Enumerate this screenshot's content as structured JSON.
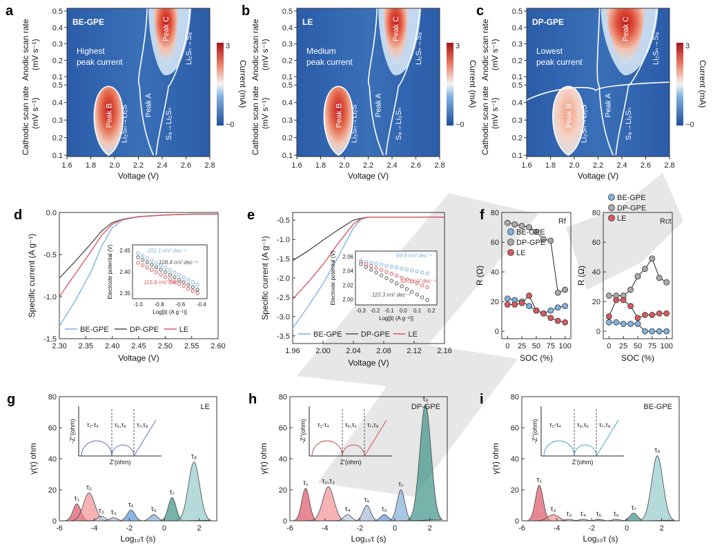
{
  "panel_labels": [
    "a",
    "b",
    "c",
    "d",
    "e",
    "f",
    "g",
    "h",
    "i"
  ],
  "heatmaps": [
    {
      "id": "a",
      "label": "BE-GPE",
      "note": [
        "Highest",
        "peak current"
      ],
      "peakB": "Peak B",
      "peakC": "Peak C",
      "peakA": "Peak A",
      "r1": "Li₂Sₙ→S₈",
      "r2": "S₈→Li₂Sₙ",
      "r3": "Li₂Sₙ→Li₂S"
    },
    {
      "id": "b",
      "label": "LE",
      "note": [
        "Medium",
        "peak current"
      ],
      "peakB": "Peak B",
      "peakC": "Peak C",
      "peakA": "Peak A",
      "r1": "Li₂Sₙ→S₈",
      "r2": "S₈→Li₂Sₙ",
      "r3": "Li₂Sₙ→Li₂S"
    },
    {
      "id": "c",
      "label": "DP-GPE",
      "note": [
        "Lowest",
        "peak current"
      ],
      "peakB": "Peak B",
      "peakC": "Peak C",
      "peakA": "Peak A",
      "r1": "Li₂Sₙ→S₈",
      "r2": "S₈→Li₂Sₙ",
      "r3": "Li₂Sₙ→Li₂S"
    }
  ],
  "heatmap_axes": {
    "ylabel_anodic": "Anodic scan rate",
    "ylabel_cathodic": "Cathodic scan rate",
    "yunit": "(mV s⁻¹)",
    "yticks_top": [
      "0.5",
      "0.4",
      "0.3",
      "0.2",
      "0.1"
    ],
    "yticks_bottom": [
      "0.5",
      "0.4",
      "0.3",
      "0.2",
      "0.1"
    ],
    "xticks": [
      "1.6",
      "1.8",
      "2.0",
      "2.2",
      "2.4",
      "2.6",
      "2.8"
    ],
    "xlabel": "Voltage (V)",
    "cbar_max": "3",
    "cbar_min": "~0",
    "cbar_label": "Current (mA)"
  },
  "panel_d": {
    "ylabel": "Specific current (A g⁻¹)",
    "xlabel": "Voltage (V)",
    "xticks": [
      "2.30",
      "2.35",
      "2.40",
      "2.45",
      "2.50",
      "2.55",
      "2.60"
    ],
    "yticks": [
      "0.0",
      "-0.5",
      "-1.0",
      "-1.5"
    ],
    "legend": [
      "BE-GPE",
      "DP-GPE",
      "LE"
    ],
    "inset": {
      "ylabel": "Electrode potential (V)",
      "xlabel": "Log[|i| (A g⁻¹)]",
      "xticks": [
        "-1.0",
        "-0.8",
        "-0.6",
        "-0.4"
      ],
      "yticks": [
        "2.45",
        "2.40",
        "2.35"
      ],
      "tafels": [
        "101.1 mV dec⁻¹",
        "115.6 mV dec⁻¹",
        "108.4 mV dec⁻¹"
      ]
    }
  },
  "panel_e": {
    "ylabel": "Specific current (A g⁻¹)",
    "xlabel": "Voltage (V)",
    "xticks": [
      "1.96",
      "2.00",
      "2.04",
      "2.08",
      "2.12",
      "2.16"
    ],
    "yticks": [
      "-0.5",
      "-1.0",
      "-1.5",
      "-2.0",
      "-2.5",
      "-3.0",
      "-3.5"
    ],
    "legend": [
      "BE-GPE",
      "DP-GPE",
      "LE"
    ],
    "inset": {
      "ylabel": "Electrode potential (V)",
      "xlabel": "Log[|i| (A g⁻¹)]",
      "xticks": [
        "-0.3",
        "-0.2",
        "-0.1",
        "0.0",
        "0.1",
        "0.2"
      ],
      "yticks": [
        "2.06",
        "2.04",
        "2.02",
        "2.00"
      ],
      "tafels": [
        "59.8 mV dec⁻¹",
        "92.3 mV dec⁻¹",
        "110.3 mV dec⁻¹"
      ]
    }
  },
  "panel_f": {
    "ylabel": "R (Ω)",
    "xlabel": "SOC (%)",
    "xticks": [
      "0",
      "25",
      "50",
      "75",
      "100"
    ],
    "yticks": [
      "0",
      "20",
      "40",
      "60",
      "80"
    ],
    "left_title": "Rf",
    "right_title": "Rct",
    "legend": [
      "BE-GPE",
      "DP-GPE",
      "LE"
    ]
  },
  "chart_data": [
    {
      "type": "line",
      "panel": "d",
      "title": "",
      "xlabel": "Voltage (V)",
      "ylabel": "Specific current (A g⁻¹)",
      "xlim": [
        2.3,
        2.6
      ],
      "ylim": [
        -1.5,
        0.0
      ],
      "series": [
        {
          "name": "BE-GPE",
          "color": "#7fb2e0",
          "x": [
            2.3,
            2.33,
            2.36,
            2.38,
            2.4,
            2.42,
            2.45,
            2.5,
            2.55,
            2.6
          ],
          "y": [
            -1.35,
            -1.05,
            -0.7,
            -0.4,
            -0.18,
            -0.09,
            -0.05,
            -0.03,
            -0.02,
            -0.02
          ]
        },
        {
          "name": "DP-GPE",
          "color": "#555555",
          "x": [
            2.3,
            2.33,
            2.36,
            2.38,
            2.4,
            2.42,
            2.45,
            2.5,
            2.55,
            2.6
          ],
          "y": [
            -0.78,
            -0.58,
            -0.37,
            -0.22,
            -0.12,
            -0.08,
            -0.05,
            -0.03,
            -0.02,
            -0.02
          ]
        },
        {
          "name": "LE",
          "color": "#d9595f",
          "x": [
            2.3,
            2.33,
            2.36,
            2.38,
            2.4,
            2.42,
            2.45,
            2.5,
            2.55,
            2.6
          ],
          "y": [
            -1.0,
            -0.73,
            -0.46,
            -0.27,
            -0.14,
            -0.08,
            -0.05,
            -0.03,
            -0.02,
            -0.02
          ]
        }
      ]
    },
    {
      "type": "line",
      "panel": "e",
      "title": "",
      "xlabel": "Voltage (V)",
      "ylabel": "Specific current (A g⁻¹)",
      "xlim": [
        1.96,
        2.16
      ],
      "ylim": [
        -3.7,
        -0.3
      ],
      "series": [
        {
          "name": "BE-GPE",
          "color": "#7fb2e0",
          "x": [
            1.96,
            1.98,
            2.0,
            2.02,
            2.04,
            2.05,
            2.06,
            2.08,
            2.12,
            2.16
          ],
          "y": [
            -3.3,
            -2.75,
            -2.15,
            -1.45,
            -0.7,
            -0.48,
            -0.42,
            -0.42,
            -0.42,
            -0.42
          ]
        },
        {
          "name": "DP-GPE",
          "color": "#555555",
          "x": [
            1.96,
            1.98,
            2.0,
            2.02,
            2.04,
            2.05,
            2.06,
            2.08,
            2.12,
            2.16
          ],
          "y": [
            -1.55,
            -1.3,
            -1.02,
            -0.75,
            -0.5,
            -0.45,
            -0.42,
            -0.42,
            -0.42,
            -0.42
          ]
        },
        {
          "name": "LE",
          "color": "#d9595f",
          "x": [
            1.96,
            1.98,
            2.0,
            2.02,
            2.04,
            2.05,
            2.06,
            2.08,
            2.12,
            2.16
          ],
          "y": [
            -2.55,
            -2.12,
            -1.65,
            -1.1,
            -0.6,
            -0.46,
            -0.42,
            -0.42,
            -0.42,
            -0.42
          ]
        }
      ]
    },
    {
      "type": "line",
      "panel": "f-Rf",
      "title": "Rf",
      "xlabel": "SOC (%)",
      "ylabel": "R (Ω)",
      "ylim": [
        -5,
        80
      ],
      "x": [
        0,
        12.5,
        25,
        37.5,
        50,
        62.5,
        75,
        87.5,
        100
      ],
      "series": [
        {
          "name": "BE-GPE",
          "color": "#5aa3dc",
          "values": [
            22,
            21,
            20,
            17,
            14,
            12,
            14,
            16,
            17
          ]
        },
        {
          "name": "DP-GPE",
          "color": "#aaaaaa",
          "values": [
            73,
            72,
            71,
            70,
            67,
            62,
            61,
            26,
            28
          ]
        },
        {
          "name": "LE",
          "color": "#d9595f",
          "values": [
            18,
            18,
            19,
            24,
            14,
            12,
            9,
            7,
            6
          ]
        }
      ]
    },
    {
      "type": "line",
      "panel": "f-Rct",
      "title": "Rct",
      "xlabel": "SOC (%)",
      "ylabel": "R (Ω)",
      "ylim": [
        -5,
        80
      ],
      "x": [
        0,
        12.5,
        25,
        37.5,
        50,
        62.5,
        75,
        87.5,
        100
      ],
      "series": [
        {
          "name": "BE-GPE",
          "color": "#5aa3dc",
          "values": [
            6,
            6,
            5,
            5,
            5,
            0,
            0,
            0,
            0
          ]
        },
        {
          "name": "DP-GPE",
          "color": "#aaaaaa",
          "values": [
            24,
            24,
            24,
            28,
            37,
            42,
            49,
            36,
            33
          ]
        },
        {
          "name": "LE",
          "color": "#d9595f",
          "values": [
            10,
            21,
            21,
            17,
            9,
            11,
            11,
            12,
            12
          ]
        }
      ]
    },
    {
      "type": "area",
      "panel": "g",
      "title": "LE",
      "xlabel": "Log10τ (s)",
      "ylabel": "γ(τ) ohm",
      "ylim": [
        0,
        80
      ],
      "xlim": [
        -6,
        3
      ],
      "peaks": [
        {
          "label": "τ1",
          "center": -5.0,
          "height": 11
        },
        {
          "label": "τ2",
          "center": -4.3,
          "height": 18
        },
        {
          "label": "τ3",
          "center": -3.6,
          "height": 3
        },
        {
          "label": "τ4",
          "center": -2.9,
          "height": 2
        },
        {
          "label": "τ5",
          "center": -1.9,
          "height": 7
        },
        {
          "label": "τ6",
          "center": -0.6,
          "height": 4
        },
        {
          "label": "τ7",
          "center": 0.45,
          "height": 15
        },
        {
          "label": "τ8",
          "center": 1.7,
          "height": 38
        }
      ]
    },
    {
      "type": "area",
      "panel": "h",
      "title": "DP-GPE",
      "xlabel": "Log10τ (s)",
      "ylabel": "γ(τ) ohm",
      "ylim": [
        0,
        80
      ],
      "xlim": [
        -6,
        3
      ],
      "peaks": [
        {
          "label": "τ1",
          "center": -5.1,
          "height": 21
        },
        {
          "label": "τ2,τ3",
          "center": -3.8,
          "height": 22
        },
        {
          "label": "τ4",
          "center": -2.7,
          "height": 4
        },
        {
          "label": "τ5",
          "center": -1.6,
          "height": 10
        },
        {
          "label": "τ6",
          "center": -0.6,
          "height": 4
        },
        {
          "label": "τ7",
          "center": 0.35,
          "height": 20
        },
        {
          "label": "τ8",
          "center": 1.75,
          "height": 75
        }
      ]
    },
    {
      "type": "area",
      "panel": "i",
      "title": "BE-GPE",
      "xlabel": "Log10τ (s)",
      "ylabel": "γ(τ) ohm",
      "ylim": [
        0,
        80
      ],
      "xlim": [
        -6,
        3
      ],
      "peaks": [
        {
          "label": "τ1",
          "center": -5.0,
          "height": 23
        },
        {
          "label": "τ2",
          "center": -4.2,
          "height": 4
        },
        {
          "label": "τ3",
          "center": -3.3,
          "height": 1
        },
        {
          "label": "τ4",
          "center": -2.5,
          "height": 1
        },
        {
          "label": "τ5",
          "center": -1.6,
          "height": 1
        },
        {
          "label": "τ6",
          "center": -0.6,
          "height": 1
        },
        {
          "label": "τ7",
          "center": 0.4,
          "height": 5
        },
        {
          "label": "τ8",
          "center": 1.75,
          "height": 42
        }
      ]
    }
  ],
  "drt": {
    "xticks": [
      "-6",
      "-4",
      "-2",
      "0",
      "2"
    ],
    "yticks": [
      "0",
      "20",
      "40",
      "60",
      "80"
    ],
    "xlabel": "Log₁₀τ (s)",
    "ylabel": "γ(τ) ohm",
    "inset_y": "-Z''(ohm)",
    "inset_x": "Z'(ohm)",
    "inset_labels": [
      "τ₁-τ₄",
      "τ₅,τ₆",
      "τ₇,τ₈"
    ],
    "titles": [
      "LE",
      "DP-GPE",
      "BE-GPE"
    ],
    "peak_labels": {
      "g": [
        "τ₁",
        "τ₂",
        "τ₃",
        "τ₄",
        "τ₅",
        "τ₆",
        "τ₇",
        "τ₈"
      ],
      "h": [
        "τ₁",
        "τ₂,τ₃",
        "τ₄",
        "τ₅",
        "τ₆",
        "τ₇",
        "τ₈"
      ],
      "i": [
        "τ₁",
        "τ₂",
        "τ₃",
        "τ₄",
        "τ₅",
        "τ₆",
        "τ₇",
        "τ₈"
      ]
    }
  },
  "colors": {
    "be": "#7fb2e0",
    "dp": "#555555",
    "le": "#d9595f",
    "hm_low": "#2a5aa8",
    "hm_mid": "#9ec3e6",
    "hm_high": "#c0191e"
  }
}
